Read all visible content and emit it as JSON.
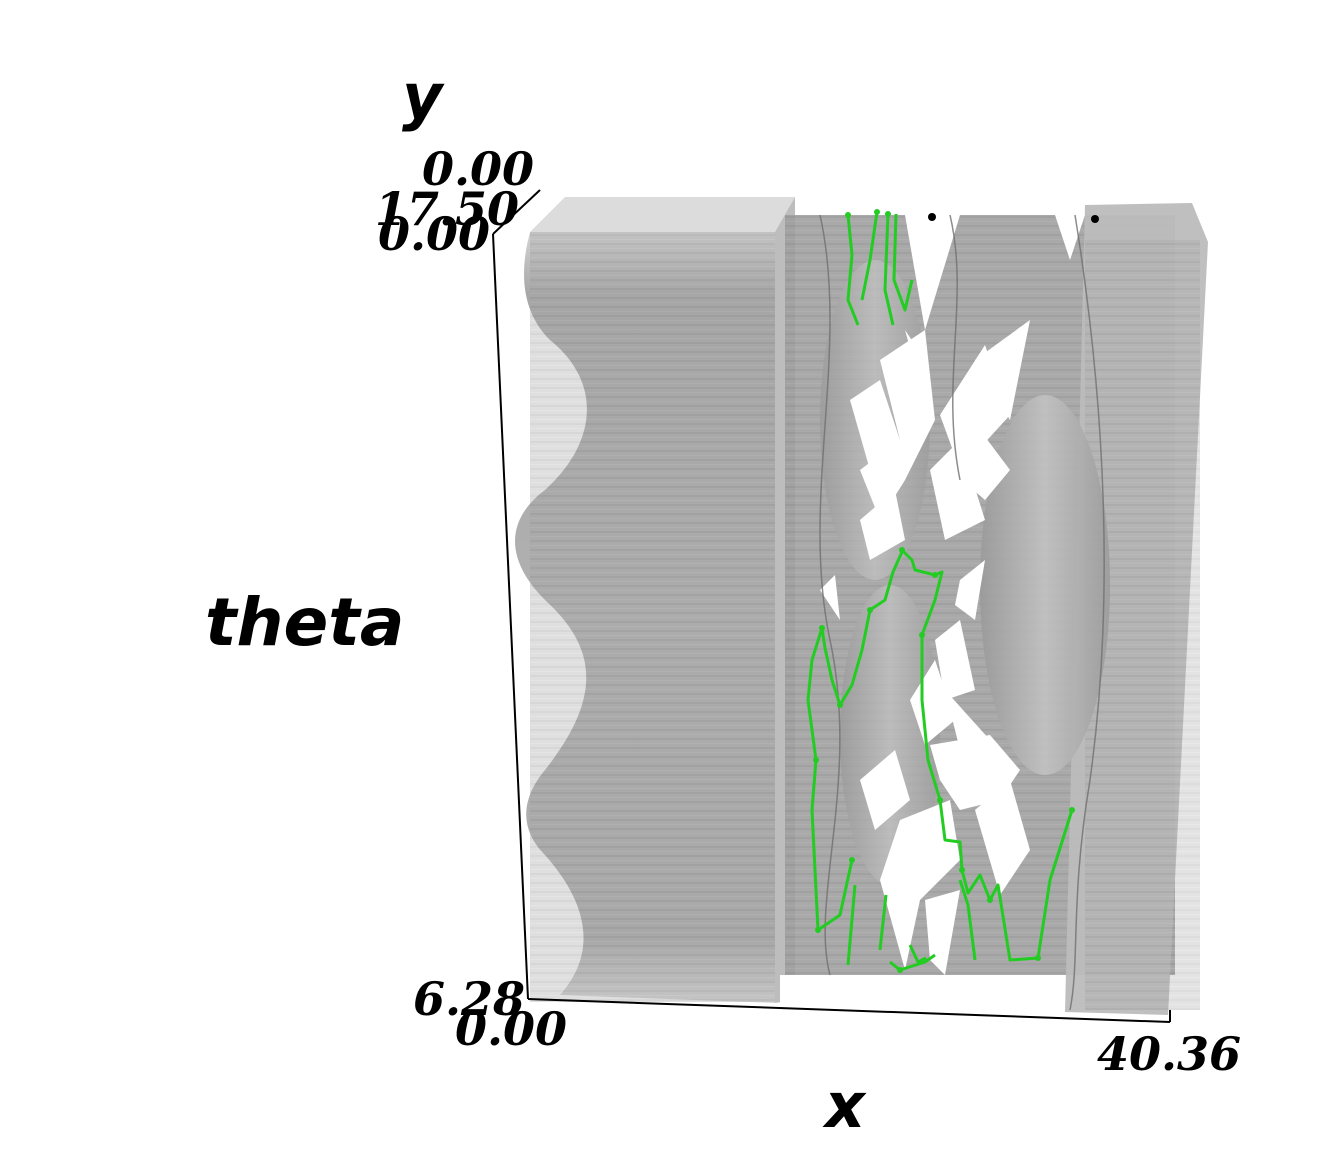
{
  "axes": {
    "x": {
      "title": "x",
      "min_label": "0.00",
      "max_label": "40.36"
    },
    "y": {
      "title": "y",
      "min_label": "0.00",
      "max_label": "17.50"
    },
    "theta": {
      "title": "theta",
      "min_label": "0.00",
      "max_label": "6.28"
    }
  },
  "colors": {
    "surface": "#9a9a9a",
    "surface_light": "#d2d2d2",
    "trajectory": "#22cc22",
    "axis_line": "#000000"
  }
}
